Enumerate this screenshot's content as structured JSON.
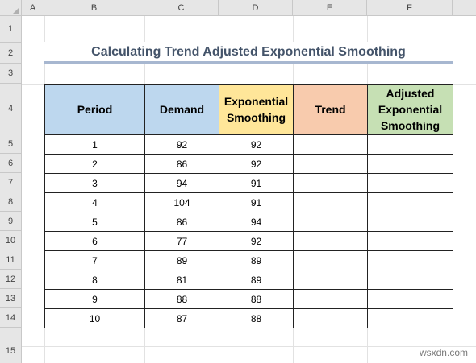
{
  "sheet": {
    "columns": [
      "A",
      "B",
      "C",
      "D",
      "E",
      "F"
    ],
    "rows": [
      "1",
      "2",
      "3",
      "4",
      "5",
      "6",
      "7",
      "8",
      "9",
      "10",
      "11",
      "12",
      "13",
      "14",
      "15"
    ]
  },
  "title": "Calculating Trend Adjusted Exponential Smoothing",
  "table": {
    "headers": {
      "period": "Period",
      "demand": "Demand",
      "exp_line1": "Exponential",
      "exp_line2": "Smoothing",
      "trend": "Trend",
      "adj_line1": "Adjusted",
      "adj_line2": "Exponential",
      "adj_line3": "Smoothing"
    },
    "rows": [
      {
        "period": "1",
        "demand": "92",
        "exp": "92",
        "trend": "",
        "adj": ""
      },
      {
        "period": "2",
        "demand": "86",
        "exp": "92",
        "trend": "",
        "adj": ""
      },
      {
        "period": "3",
        "demand": "94",
        "exp": "91",
        "trend": "",
        "adj": ""
      },
      {
        "period": "4",
        "demand": "104",
        "exp": "91",
        "trend": "",
        "adj": ""
      },
      {
        "period": "5",
        "demand": "86",
        "exp": "94",
        "trend": "",
        "adj": ""
      },
      {
        "period": "6",
        "demand": "77",
        "exp": "92",
        "trend": "",
        "adj": ""
      },
      {
        "period": "7",
        "demand": "89",
        "exp": "89",
        "trend": "",
        "adj": ""
      },
      {
        "period": "8",
        "demand": "81",
        "exp": "89",
        "trend": "",
        "adj": ""
      },
      {
        "period": "9",
        "demand": "88",
        "exp": "88",
        "trend": "",
        "adj": ""
      },
      {
        "period": "10",
        "demand": "87",
        "exp": "88",
        "trend": "",
        "adj": ""
      }
    ]
  },
  "colors": {
    "header_blue": "#bdd7ee",
    "header_yellow": "#ffe699",
    "header_orange": "#f8cbad",
    "header_green": "#c6e0b4",
    "title_color": "#44546a"
  },
  "watermark": "wsxdn.com"
}
